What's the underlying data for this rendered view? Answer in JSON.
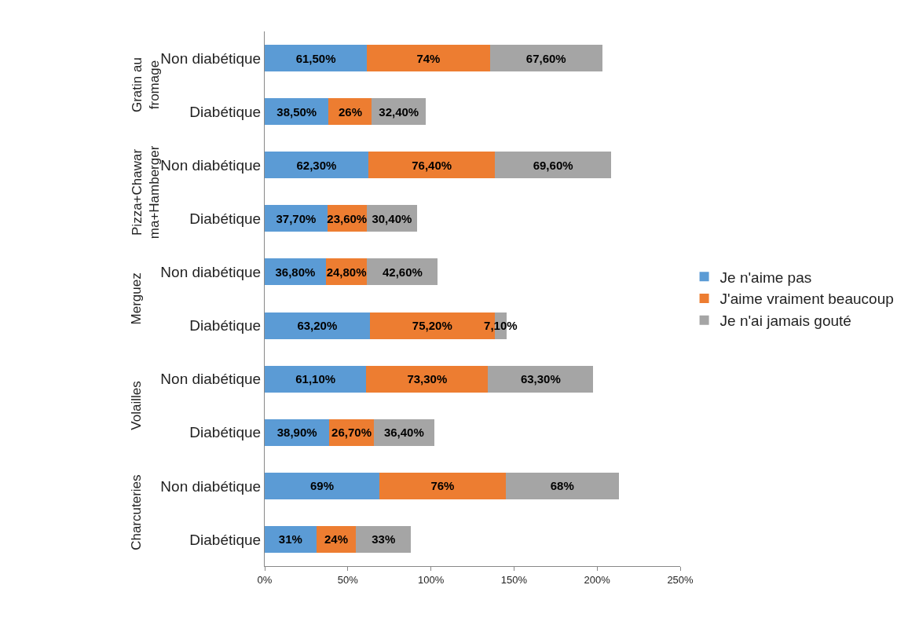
{
  "chart_data": {
    "type": "bar",
    "orientation": "horizontal",
    "stacked": true,
    "legend": "right",
    "grid": false,
    "categories": [
      "Non diabétique",
      "Diabétique",
      "Non diabétique",
      "Diabétique",
      "Non diabétique",
      "Diabétique",
      "Non diabétique",
      "Diabétique",
      "Non diabétique",
      "Diabétique"
    ],
    "annotations": [
      "Gratin au fromage",
      "Pizza+Chawarma+Hamberger",
      "Merguez",
      "Volailles",
      "Charcuteries"
    ],
    "xlim": [
      0,
      250
    ],
    "xticks": [
      {
        "value": 0,
        "label": "0%"
      },
      {
        "value": 50,
        "label": "50%"
      },
      {
        "value": 100,
        "label": "100%"
      },
      {
        "value": 150,
        "label": "150%"
      },
      {
        "value": 200,
        "label": "200%"
      },
      {
        "value": 250,
        "label": "250%"
      }
    ],
    "series": [
      {
        "name": "Je n'aime pas",
        "color": "#5b9bd5",
        "values": [
          61.5,
          38.5,
          62.3,
          37.7,
          36.8,
          63.2,
          61.1,
          38.9,
          69,
          31
        ],
        "value_labels": [
          "61,50%",
          "38,50%",
          "62,30%",
          "37,70%",
          "36,80%",
          "63,20%",
          "61,10%",
          "38,90%",
          "69%",
          "31%"
        ]
      },
      {
        "name": "J'aime vraiment beaucoup",
        "color": "#ed7d31",
        "values": [
          74,
          26,
          76.4,
          23.6,
          24.8,
          75.2,
          73.3,
          26.7,
          76,
          24
        ],
        "value_labels": [
          "74%",
          "26%",
          "76,40%",
          "23,60%",
          "24,80%",
          "75,20%",
          "73,30%",
          "26,70%",
          "76%",
          "24%"
        ]
      },
      {
        "name": "Je n'ai jamais gouté",
        "color": "#a5a5a5",
        "values": [
          67.6,
          32.4,
          69.6,
          30.4,
          42.6,
          7.1,
          63.3,
          36.4,
          68,
          33
        ],
        "value_labels": [
          "67,60%",
          "32,40%",
          "69,60%",
          "30,40%",
          "42,60%",
          "7,10%",
          "63,30%",
          "36,40%",
          "68%",
          "33%"
        ]
      }
    ]
  }
}
